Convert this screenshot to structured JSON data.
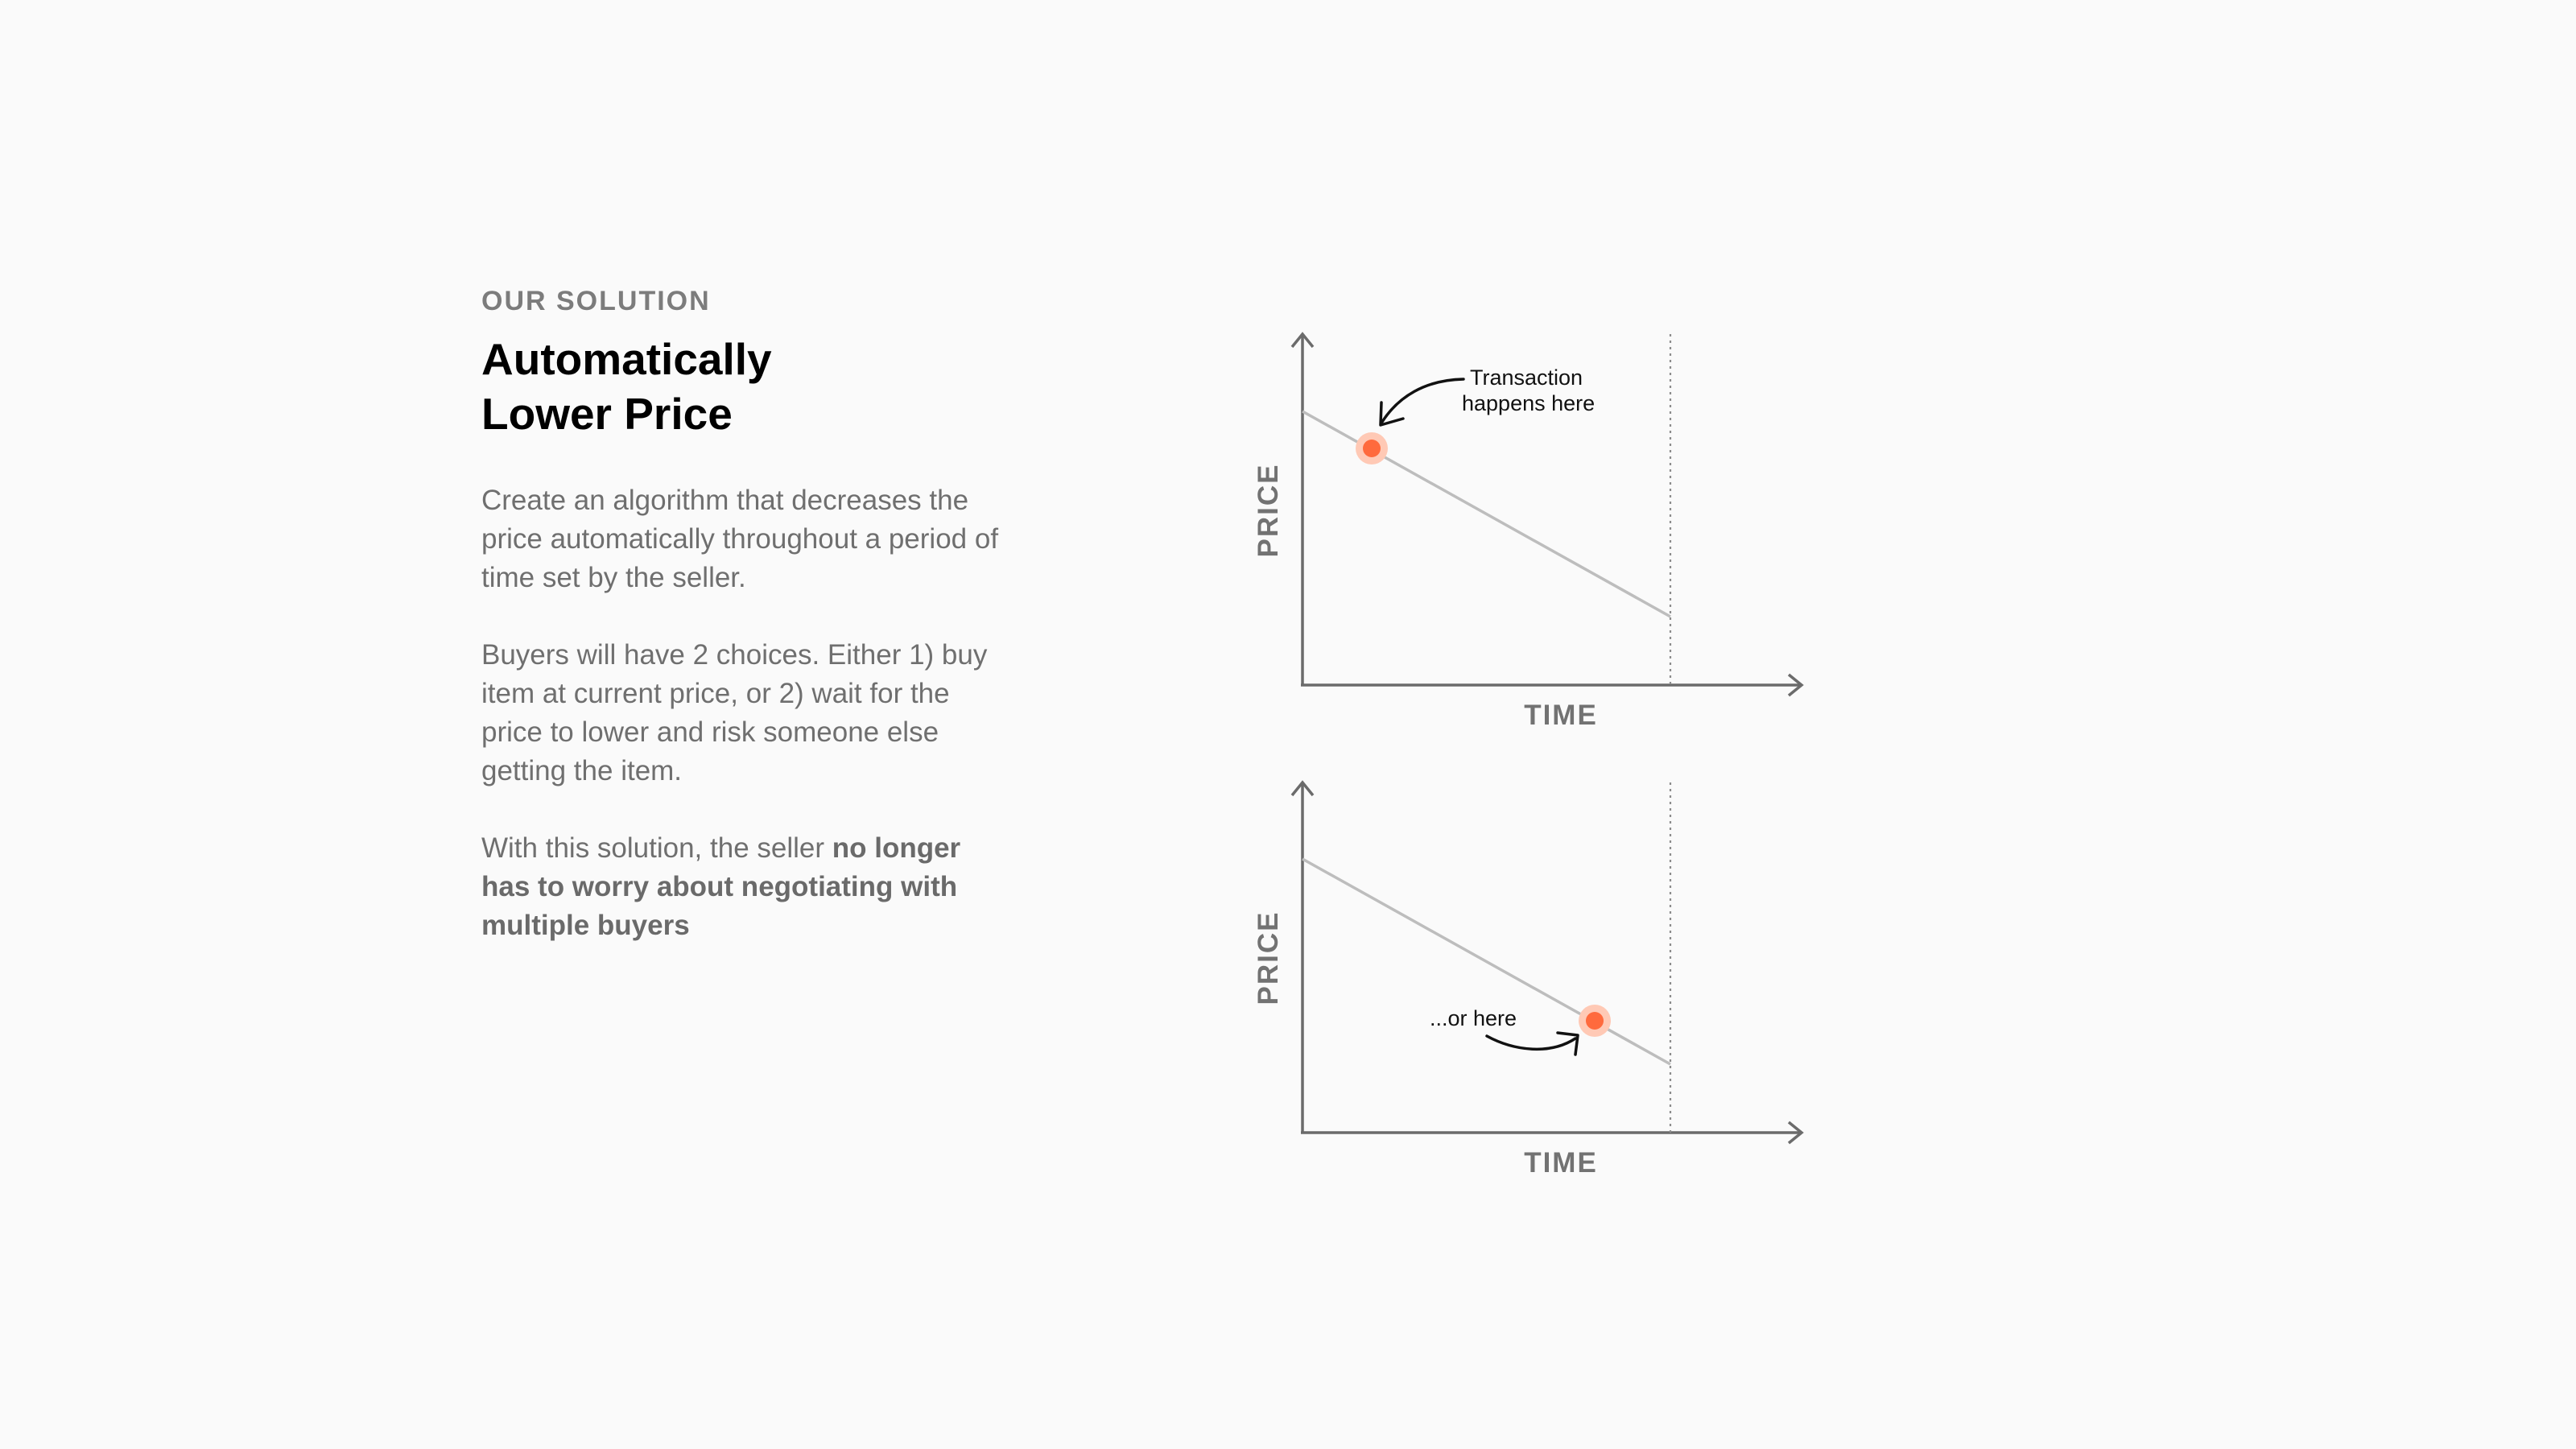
{
  "section_label": "OUR SOLUTION",
  "headline": {
    "line1": "Automatically",
    "line2": "Lower Price"
  },
  "paragraphs": {
    "p1": "Create an algorithm that decreases the price automatically throughout a period of time set by the seller.",
    "p2": "Buyers will have 2 choices. Either 1) buy item at current price, or 2) wait for the price to lower and risk someone else getting the item.",
    "p3_lead": "With this solution, the seller ",
    "p3_bold": "no longer has to worry about negotiating with multiple buyers"
  },
  "diagram_top": {
    "x_label": "TIME",
    "y_label": "PRICE",
    "note_line1": "Transaction",
    "note_line2": "happens here"
  },
  "diagram_bottom": {
    "x_label": "TIME",
    "y_label": "PRICE",
    "note": "...or here"
  },
  "colors": {
    "marker": "#ff6a3d",
    "marker_halo": "#ffc9b5",
    "trend_line": "#bdbdbd",
    "axis": "#6b6b6b"
  }
}
